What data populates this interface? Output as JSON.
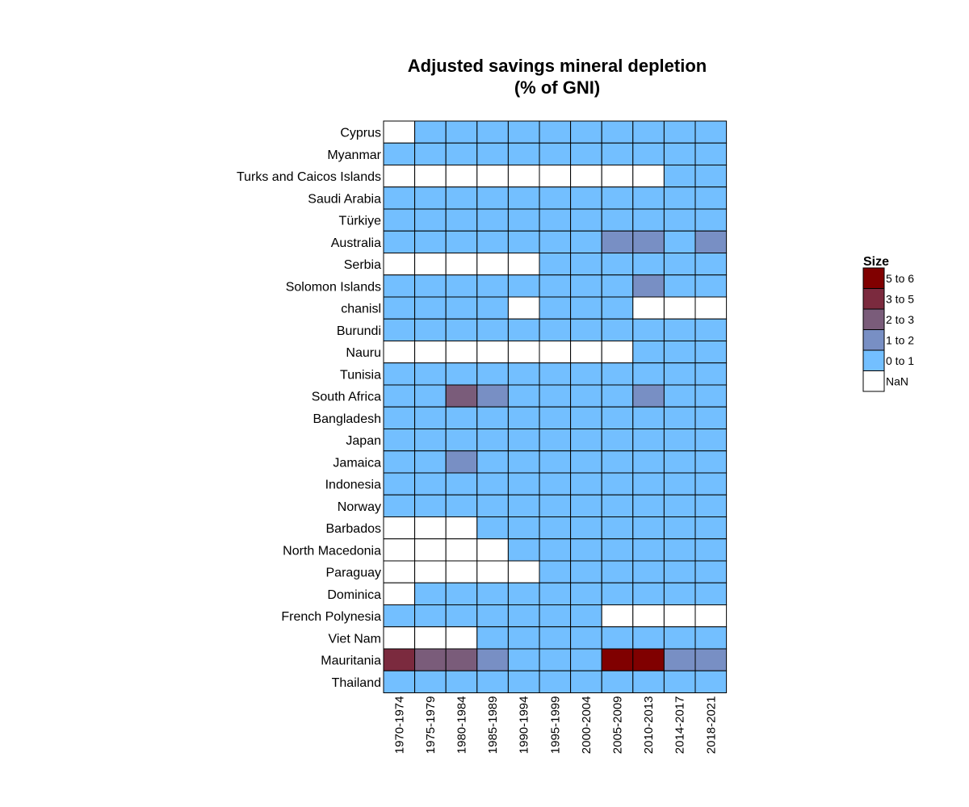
{
  "chart_data": {
    "type": "heatmap",
    "title": [
      "Adjusted savings mineral depletion",
      "(% of GNI)"
    ],
    "columns": [
      "1970-1974",
      "1975-1979",
      "1980-1984",
      "1985-1989",
      "1990-1994",
      "1995-1999",
      "2000-2004",
      "2005-2009",
      "2010-2013",
      "2014-2017",
      "2018-2021"
    ],
    "rows": [
      "Cyprus",
      "Myanmar",
      "Turks and Caicos Islands",
      "Saudi Arabia",
      "Türkiye",
      "Australia",
      "Serbia",
      "Solomon Islands",
      "chanisl",
      "Burundi",
      "Nauru",
      "Tunisia",
      "South Africa",
      "Bangladesh",
      "Japan",
      "Jamaica",
      "Indonesia",
      "Norway",
      "Barbados",
      "North Macedonia",
      "Paraguay",
      "Dominica",
      "French Polynesia",
      "Viet Nam",
      "Mauritania",
      "Thailand"
    ],
    "values": [
      [
        "NaN",
        "0 to 1",
        "0 to 1",
        "0 to 1",
        "0 to 1",
        "0 to 1",
        "0 to 1",
        "0 to 1",
        "0 to 1",
        "0 to 1",
        "0 to 1"
      ],
      [
        "0 to 1",
        "0 to 1",
        "0 to 1",
        "0 to 1",
        "0 to 1",
        "0 to 1",
        "0 to 1",
        "0 to 1",
        "0 to 1",
        "0 to 1",
        "0 to 1"
      ],
      [
        "NaN",
        "NaN",
        "NaN",
        "NaN",
        "NaN",
        "NaN",
        "NaN",
        "NaN",
        "NaN",
        "0 to 1",
        "0 to 1"
      ],
      [
        "0 to 1",
        "0 to 1",
        "0 to 1",
        "0 to 1",
        "0 to 1",
        "0 to 1",
        "0 to 1",
        "0 to 1",
        "0 to 1",
        "0 to 1",
        "0 to 1"
      ],
      [
        "0 to 1",
        "0 to 1",
        "0 to 1",
        "0 to 1",
        "0 to 1",
        "0 to 1",
        "0 to 1",
        "0 to 1",
        "0 to 1",
        "0 to 1",
        "0 to 1"
      ],
      [
        "0 to 1",
        "0 to 1",
        "0 to 1",
        "0 to 1",
        "0 to 1",
        "0 to 1",
        "0 to 1",
        "1 to 2",
        "1 to 2",
        "0 to 1",
        "1 to 2"
      ],
      [
        "NaN",
        "NaN",
        "NaN",
        "NaN",
        "NaN",
        "0 to 1",
        "0 to 1",
        "0 to 1",
        "0 to 1",
        "0 to 1",
        "0 to 1"
      ],
      [
        "0 to 1",
        "0 to 1",
        "0 to 1",
        "0 to 1",
        "0 to 1",
        "0 to 1",
        "0 to 1",
        "0 to 1",
        "1 to 2",
        "0 to 1",
        "0 to 1"
      ],
      [
        "0 to 1",
        "0 to 1",
        "0 to 1",
        "0 to 1",
        "NaN",
        "0 to 1",
        "0 to 1",
        "0 to 1",
        "NaN",
        "NaN",
        "NaN"
      ],
      [
        "0 to 1",
        "0 to 1",
        "0 to 1",
        "0 to 1",
        "0 to 1",
        "0 to 1",
        "0 to 1",
        "0 to 1",
        "0 to 1",
        "0 to 1",
        "0 to 1"
      ],
      [
        "NaN",
        "NaN",
        "NaN",
        "NaN",
        "NaN",
        "NaN",
        "NaN",
        "NaN",
        "0 to 1",
        "0 to 1",
        "0 to 1"
      ],
      [
        "0 to 1",
        "0 to 1",
        "0 to 1",
        "0 to 1",
        "0 to 1",
        "0 to 1",
        "0 to 1",
        "0 to 1",
        "0 to 1",
        "0 to 1",
        "0 to 1"
      ],
      [
        "0 to 1",
        "0 to 1",
        "2 to 3",
        "1 to 2",
        "0 to 1",
        "0 to 1",
        "0 to 1",
        "0 to 1",
        "1 to 2",
        "0 to 1",
        "0 to 1"
      ],
      [
        "0 to 1",
        "0 to 1",
        "0 to 1",
        "0 to 1",
        "0 to 1",
        "0 to 1",
        "0 to 1",
        "0 to 1",
        "0 to 1",
        "0 to 1",
        "0 to 1"
      ],
      [
        "0 to 1",
        "0 to 1",
        "0 to 1",
        "0 to 1",
        "0 to 1",
        "0 to 1",
        "0 to 1",
        "0 to 1",
        "0 to 1",
        "0 to 1",
        "0 to 1"
      ],
      [
        "0 to 1",
        "0 to 1",
        "1 to 2",
        "0 to 1",
        "0 to 1",
        "0 to 1",
        "0 to 1",
        "0 to 1",
        "0 to 1",
        "0 to 1",
        "0 to 1"
      ],
      [
        "0 to 1",
        "0 to 1",
        "0 to 1",
        "0 to 1",
        "0 to 1",
        "0 to 1",
        "0 to 1",
        "0 to 1",
        "0 to 1",
        "0 to 1",
        "0 to 1"
      ],
      [
        "0 to 1",
        "0 to 1",
        "0 to 1",
        "0 to 1",
        "0 to 1",
        "0 to 1",
        "0 to 1",
        "0 to 1",
        "0 to 1",
        "0 to 1",
        "0 to 1"
      ],
      [
        "NaN",
        "NaN",
        "NaN",
        "0 to 1",
        "0 to 1",
        "0 to 1",
        "0 to 1",
        "0 to 1",
        "0 to 1",
        "0 to 1",
        "0 to 1"
      ],
      [
        "NaN",
        "NaN",
        "NaN",
        "NaN",
        "0 to 1",
        "0 to 1",
        "0 to 1",
        "0 to 1",
        "0 to 1",
        "0 to 1",
        "0 to 1"
      ],
      [
        "NaN",
        "NaN",
        "NaN",
        "NaN",
        "NaN",
        "0 to 1",
        "0 to 1",
        "0 to 1",
        "0 to 1",
        "0 to 1",
        "0 to 1"
      ],
      [
        "NaN",
        "0 to 1",
        "0 to 1",
        "0 to 1",
        "0 to 1",
        "0 to 1",
        "0 to 1",
        "0 to 1",
        "0 to 1",
        "0 to 1",
        "0 to 1"
      ],
      [
        "0 to 1",
        "0 to 1",
        "0 to 1",
        "0 to 1",
        "0 to 1",
        "0 to 1",
        "0 to 1",
        "NaN",
        "NaN",
        "NaN",
        "NaN"
      ],
      [
        "NaN",
        "NaN",
        "NaN",
        "0 to 1",
        "0 to 1",
        "0 to 1",
        "0 to 1",
        "0 to 1",
        "0 to 1",
        "0 to 1",
        "0 to 1"
      ],
      [
        "3 to 5",
        "2 to 3",
        "2 to 3",
        "1 to 2",
        "0 to 1",
        "0 to 1",
        "0 to 1",
        "5 to 6",
        "5 to 6",
        "1 to 2",
        "1 to 2"
      ],
      [
        "0 to 1",
        "0 to 1",
        "0 to 1",
        "0 to 1",
        "0 to 1",
        "0 to 1",
        "0 to 1",
        "0 to 1",
        "0 to 1",
        "0 to 1",
        "0 to 1"
      ]
    ],
    "legend": {
      "title": "Size",
      "position": "right",
      "items": [
        {
          "label": "5 to 6",
          "color": "#800000"
        },
        {
          "label": "3 to 5",
          "color": "#7b2a3e"
        },
        {
          "label": "2 to 3",
          "color": "#7a5c7a"
        },
        {
          "label": "1 to 2",
          "color": "#788fc4"
        },
        {
          "label": "0 to 1",
          "color": "#73bfff"
        },
        {
          "label": "NaN",
          "color": "#ffffff"
        }
      ]
    },
    "grid": true
  }
}
